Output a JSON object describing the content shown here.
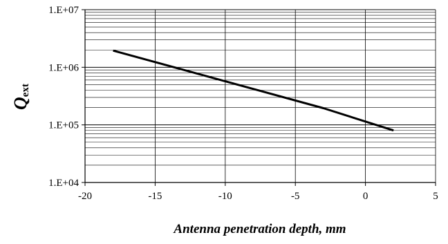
{
  "chart_data": {
    "type": "line",
    "xlabel": "Antenna penetration depth, mm",
    "ylabel": {
      "main": "Q",
      "sub": "ext"
    },
    "xlim": [
      -20,
      5
    ],
    "ylim": [
      10000,
      10000000
    ],
    "yscale": "log",
    "grid": {
      "major_x": true,
      "major_y": true,
      "minor_y": true
    },
    "x_ticks": [
      -20,
      -15,
      -10,
      -5,
      0,
      5
    ],
    "x_tick_labels": [
      "-20",
      "-15",
      "-10",
      "-5",
      "0",
      "5"
    ],
    "y_ticks": [
      10000,
      100000,
      1000000,
      10000000
    ],
    "y_tick_labels": [
      "1.E+04",
      "1.E+05",
      "1.E+06",
      "1.E+07"
    ],
    "series": [
      {
        "color": "#000000",
        "x": [
          -18,
          -13,
          -8,
          -3,
          2
        ],
        "y": [
          1950000,
          905000,
          420000,
          195000,
          80000
        ]
      }
    ]
  }
}
